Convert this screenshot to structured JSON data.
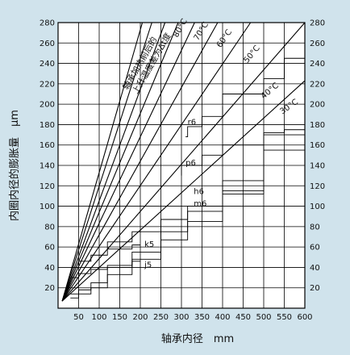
{
  "chart_data": {
    "type": "line",
    "xlabel": "轴承内径　mm",
    "ylabel": "内圈内径的膨胀量　μm",
    "series_title": [
      "轴承加热前后的",
      "上升温度差为Δt度"
    ],
    "xlim": [
      0,
      600
    ],
    "ylim": [
      0,
      280
    ],
    "x_ticks": [
      50,
      100,
      150,
      200,
      250,
      300,
      350,
      400,
      450,
      500,
      550,
      600
    ],
    "y_ticks_left": [
      20,
      40,
      60,
      80,
      100,
      120,
      140,
      160,
      180,
      200,
      220,
      240,
      260,
      280
    ],
    "y_ticks_right": [
      20,
      40,
      60,
      80,
      100,
      120,
      140,
      160,
      180,
      200,
      220,
      240,
      260,
      280
    ],
    "grid": true,
    "series": [
      {
        "name": "30°C",
        "x": [
          10,
          600
        ],
        "y": [
          7,
          223
        ]
      },
      {
        "name": "40°C",
        "x": [
          10,
          600
        ],
        "y": [
          7,
          280
        ]
      },
      {
        "name": "50°C",
        "x": [
          10,
          468
        ],
        "y": [
          7,
          280
        ]
      },
      {
        "name": "60°C",
        "x": [
          10,
          388
        ],
        "y": [
          7,
          280
        ]
      },
      {
        "name": "70°C",
        "x": [
          10,
          332
        ],
        "y": [
          7,
          280
        ]
      },
      {
        "name": "80°C",
        "x": [
          10,
          292
        ],
        "y": [
          7,
          280
        ]
      },
      {
        "name": "",
        "x": [
          10,
          260
        ],
        "y": [
          7,
          280
        ]
      },
      {
        "name": "",
        "x": [
          10,
          228
        ],
        "y": [
          7,
          280
        ]
      },
      {
        "name": "",
        "x": [
          10,
          205
        ],
        "y": [
          7,
          280
        ]
      }
    ],
    "fits": [
      {
        "name": "r6",
        "x": [
          310,
          315,
          315,
          350,
          350,
          400,
          400
        ],
        "y": [
          168,
          168,
          178,
          178,
          188,
          188,
          198
        ]
      },
      {
        "name": "p6",
        "x": [
          120,
          120,
          180,
          180,
          250,
          250,
          315,
          315,
          400,
          400,
          500,
          500
        ],
        "y": [
          58,
          65,
          65,
          75,
          75,
          87,
          87,
          100,
          100,
          112,
          112,
          123
        ]
      },
      {
        "name": "h6",
        "x": [
          30,
          50,
          50,
          80,
          80,
          120,
          120,
          180,
          180,
          250,
          250,
          315,
          315,
          400,
          400,
          500,
          500,
          600
        ],
        "y": [
          14,
          14,
          18,
          18,
          25,
          25,
          40,
          40,
          55,
          55,
          75,
          75,
          95,
          95,
          125,
          125,
          170,
          170
        ]
      },
      {
        "name": "m6",
        "x": [
          30,
          50,
          50,
          80,
          80,
          120,
          120,
          180,
          180,
          250,
          250,
          315,
          315,
          400,
          400,
          500,
          500,
          600
        ],
        "y": [
          10,
          10,
          14,
          14,
          20,
          20,
          33,
          33,
          48,
          48,
          67,
          67,
          85,
          85,
          115,
          115,
          155,
          155
        ]
      },
      {
        "name": "k5",
        "x": [
          30,
          50,
          50,
          80,
          80,
          120,
          120,
          180,
          180,
          200
        ],
        "y": [
          40,
          40,
          46,
          46,
          52,
          52,
          58,
          58,
          62,
          62
        ]
      },
      {
        "name": "j5",
        "x": [
          30,
          50,
          50,
          80,
          80,
          120,
          120,
          180,
          180,
          200
        ],
        "y": [
          30,
          30,
          34,
          34,
          38,
          38,
          42,
          42,
          46,
          46
        ]
      },
      {
        "name": "",
        "x": [
          400,
          400,
          500,
          500,
          550,
          550,
          600
        ],
        "y": [
          200,
          210,
          210,
          225,
          225,
          245,
          245
        ]
      },
      {
        "name": "",
        "x": [
          400,
          400,
          500,
          500,
          550,
          550,
          600
        ],
        "y": [
          150,
          160,
          160,
          172,
          172,
          175,
          175
        ]
      },
      {
        "name": "",
        "x": [
          300,
          300,
          350,
          350,
          400
        ],
        "y": [
          130,
          140,
          140,
          150,
          150
        ]
      }
    ],
    "label_positions": {
      "80°C": [
        290,
        265
      ],
      "70°C": [
        340,
        262
      ],
      "60°C": [
        395,
        255
      ],
      "50°C": [
        460,
        240
      ],
      "40°C": [
        500,
        205
      ],
      "30°C": [
        545,
        190
      ],
      "r6": [
        315,
        180
      ],
      "p6": [
        310,
        140
      ],
      "h6": [
        330,
        112
      ],
      "m6": [
        330,
        100
      ],
      "k5": [
        210,
        60
      ],
      "j5": [
        210,
        40
      ]
    }
  }
}
